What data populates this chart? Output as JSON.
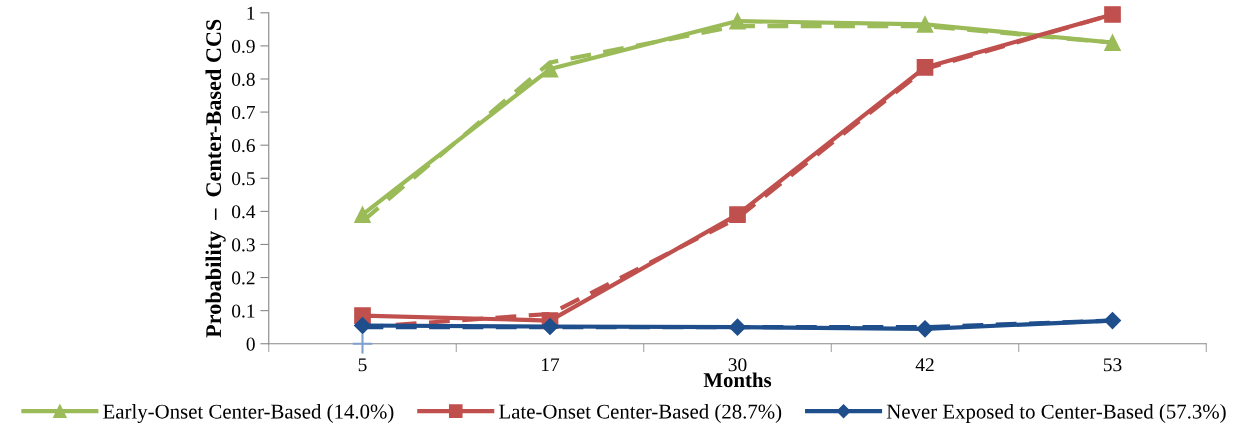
{
  "chart_data": {
    "type": "line",
    "xlabel": "Months",
    "ylabel": "Probability  –  Center-Based CCS",
    "categories": [
      "5",
      "17",
      "30",
      "42",
      "53"
    ],
    "ylim": [
      0,
      1
    ],
    "yticks": [
      0,
      0.1,
      0.2,
      0.3,
      0.4,
      0.5,
      0.6,
      0.7,
      0.8,
      0.9,
      1
    ],
    "grid": false,
    "legend": "bottom",
    "series": [
      {
        "name": "Early-Onset Center-Based (14.0%)",
        "color": "#9bbb59",
        "marker": "triangle",
        "line_style": "solid",
        "values": [
          0.39,
          0.83,
          0.975,
          0.965,
          0.91
        ]
      },
      {
        "name": "Late-Onset Center-Based (28.7%)",
        "color": "#c0504d",
        "marker": "square",
        "line_style": "solid",
        "values": [
          0.085,
          0.07,
          0.39,
          0.835,
          0.995
        ]
      },
      {
        "name": "Never Exposed to Center-Based (57.3%)",
        "color": "#1f4e8c",
        "marker": "diamond",
        "line_style": "solid",
        "values": [
          0.055,
          0.052,
          0.05,
          0.045,
          0.07
        ]
      },
      {
        "color": "#9bbb59",
        "marker": "none",
        "line_style": "dashed",
        "values": [
          0.37,
          0.85,
          0.96,
          0.96,
          0.91
        ]
      },
      {
        "color": "#c0504d",
        "marker": "none",
        "line_style": "dashed",
        "values": [
          0.05,
          0.09,
          0.38,
          0.83,
          0.995
        ]
      },
      {
        "color": "#1f4e8c",
        "marker": "none",
        "line_style": "dashed",
        "values": [
          0.05,
          0.05,
          0.05,
          0.05,
          0.07
        ]
      },
      {
        "type": "scatter",
        "color": "#7f9fd0",
        "marker": "cross",
        "values": [
          0,
          null,
          null,
          null,
          null
        ]
      }
    ]
  }
}
